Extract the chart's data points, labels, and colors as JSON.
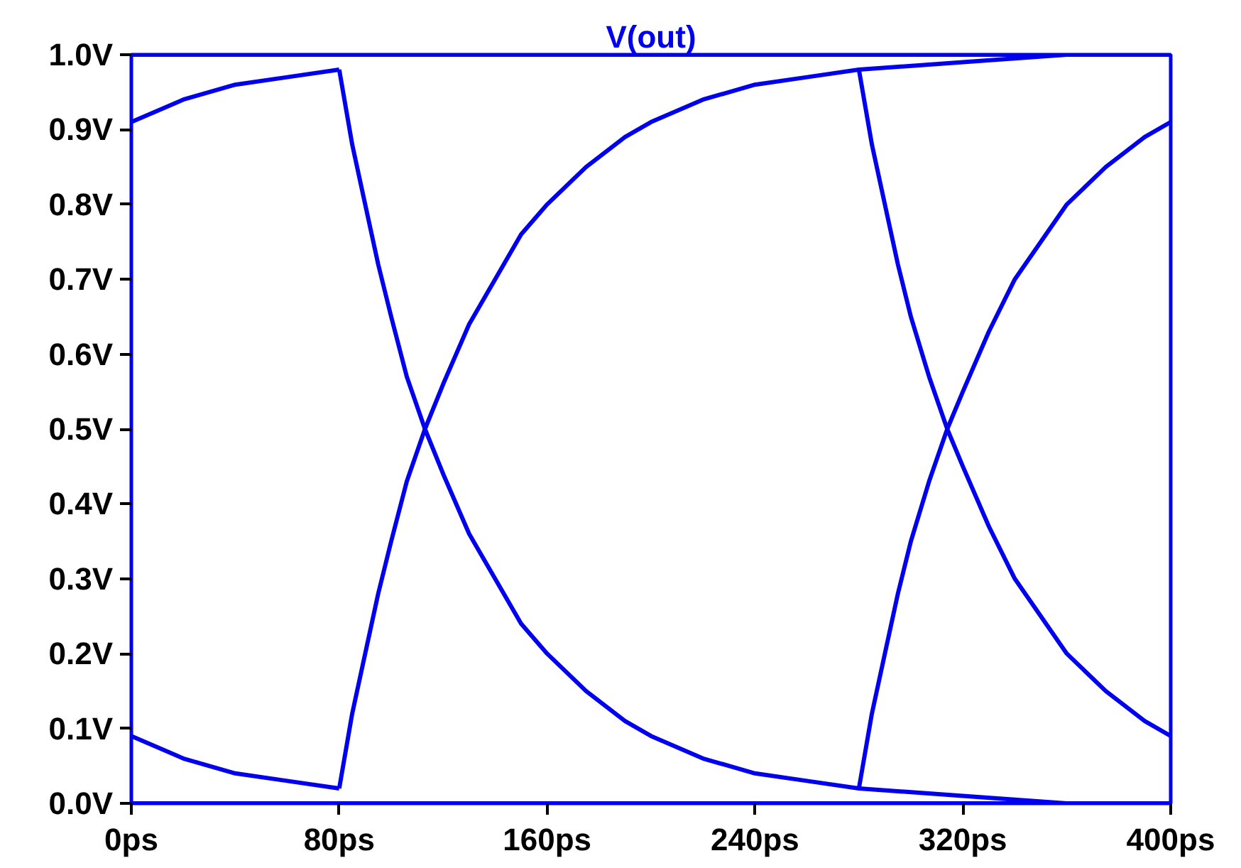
{
  "chart_data": {
    "type": "line",
    "title": "V(out)",
    "xlim": [
      0,
      400
    ],
    "ylim": [
      0,
      1.0
    ],
    "xticks": [
      {
        "value": 0,
        "label": "0ps"
      },
      {
        "value": 80,
        "label": "80ps"
      },
      {
        "value": 160,
        "label": "160ps"
      },
      {
        "value": 240,
        "label": "240ps"
      },
      {
        "value": 320,
        "label": "320ps"
      },
      {
        "value": 400,
        "label": "400ps"
      }
    ],
    "yticks": [
      {
        "value": 0,
        "label": "0.0V"
      },
      {
        "value": 0.1,
        "label": "0.1V"
      },
      {
        "value": 0.2,
        "label": "0.2V"
      },
      {
        "value": 0.3,
        "label": "0.3V"
      },
      {
        "value": 0.4,
        "label": "0.4V"
      },
      {
        "value": 0.5,
        "label": "0.5V"
      },
      {
        "value": 0.6,
        "label": "0.6V"
      },
      {
        "value": 0.7,
        "label": "0.7V"
      },
      {
        "value": 0.8,
        "label": "0.8V"
      },
      {
        "value": 0.9,
        "label": "0.9V"
      },
      {
        "value": 1.0,
        "label": "1.0V"
      }
    ],
    "grid": false,
    "marker": "none",
    "line_style": "solid",
    "series": [
      {
        "color": "#0000ee",
        "x": [
          0,
          400
        ],
        "values": [
          1.0,
          1.0
        ]
      },
      {
        "color": "#0000ee",
        "x": [
          0,
          400
        ],
        "values": [
          0.0,
          0.0
        ]
      },
      {
        "color": "#0000ee",
        "x": [
          0,
          20,
          40,
          60,
          80
        ],
        "values": [
          0.91,
          0.94,
          0.96,
          0.97,
          0.98
        ]
      },
      {
        "color": "#0000ee",
        "x": [
          0,
          20,
          40,
          60,
          80
        ],
        "values": [
          0.09,
          0.06,
          0.04,
          0.03,
          0.02
        ]
      },
      {
        "color": "#0000ee",
        "x": [
          80,
          85,
          90,
          95,
          100,
          106,
          113,
          120,
          130,
          140,
          150,
          160,
          175,
          190,
          200,
          220,
          240,
          260,
          280,
          320,
          360,
          400
        ],
        "values": [
          0.02,
          0.12,
          0.2,
          0.28,
          0.35,
          0.43,
          0.5,
          0.56,
          0.64,
          0.7,
          0.76,
          0.8,
          0.85,
          0.89,
          0.91,
          0.94,
          0.96,
          0.97,
          0.98,
          0.99,
          1.0,
          1.0
        ]
      },
      {
        "color": "#0000ee",
        "x": [
          80,
          85,
          90,
          95,
          100,
          106,
          113,
          120,
          130,
          140,
          150,
          160,
          175,
          190,
          200,
          220,
          240,
          260,
          280,
          320,
          360,
          400
        ],
        "values": [
          0.98,
          0.88,
          0.8,
          0.72,
          0.65,
          0.57,
          0.5,
          0.44,
          0.36,
          0.3,
          0.24,
          0.2,
          0.15,
          0.11,
          0.09,
          0.06,
          0.04,
          0.03,
          0.02,
          0.01,
          0.0,
          0.0
        ]
      },
      {
        "color": "#0000ee",
        "x": [
          280,
          285,
          290,
          295,
          300,
          307,
          314,
          320,
          330,
          340,
          350,
          360,
          375,
          390,
          400
        ],
        "values": [
          0.02,
          0.12,
          0.2,
          0.28,
          0.35,
          0.43,
          0.5,
          0.55,
          0.63,
          0.7,
          0.75,
          0.8,
          0.85,
          0.89,
          0.91
        ]
      },
      {
        "color": "#0000ee",
        "x": [
          280,
          285,
          290,
          295,
          300,
          307,
          314,
          320,
          330,
          340,
          350,
          360,
          375,
          390,
          400
        ],
        "values": [
          0.98,
          0.88,
          0.8,
          0.72,
          0.65,
          0.57,
          0.5,
          0.45,
          0.37,
          0.3,
          0.25,
          0.2,
          0.15,
          0.11,
          0.09
        ]
      }
    ]
  }
}
